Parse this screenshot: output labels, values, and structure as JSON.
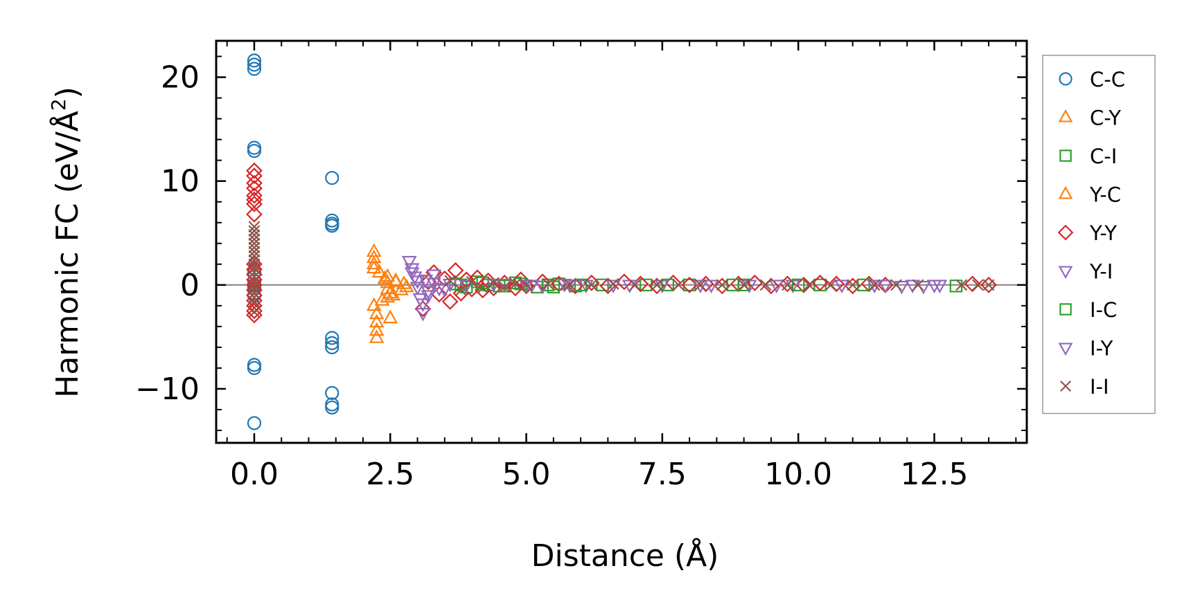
{
  "chart_data": {
    "type": "scatter",
    "title": "",
    "xlabel": "Distance (Å)",
    "ylabel_main": "Harmonic FC (eV/Å",
    "ylabel_sup": "2",
    "ylabel_close": ")",
    "xlim": [
      -0.7,
      14.2
    ],
    "ylim": [
      -15.2,
      23.5
    ],
    "xticks": [
      {
        "value": 0.0,
        "label": "0.0"
      },
      {
        "value": 2.5,
        "label": "2.5"
      },
      {
        "value": 5.0,
        "label": "5.0"
      },
      {
        "value": 7.5,
        "label": "7.5"
      },
      {
        "value": 10.0,
        "label": "10.0"
      },
      {
        "value": 12.5,
        "label": "12.5"
      }
    ],
    "yticks": [
      {
        "value": -10,
        "label": "−10"
      },
      {
        "value": 0,
        "label": "0"
      },
      {
        "value": 10,
        "label": "10"
      },
      {
        "value": 20,
        "label": "20"
      }
    ],
    "x_minor_step": 0.5,
    "y_minor_step": 2,
    "zero_line": true,
    "grid": false,
    "legend_position": "right-outside",
    "series": [
      {
        "name": "C-C",
        "marker": "circle",
        "color": "#1f77b4",
        "x": [
          0,
          0,
          0,
          0,
          0,
          0,
          0,
          0,
          0,
          0,
          0,
          0,
          0,
          1.43,
          1.43,
          1.43,
          1.43,
          1.43,
          1.43,
          1.43,
          1.43,
          1.43,
          1.43
        ],
        "y": [
          21.6,
          21.2,
          20.8,
          13.2,
          12.9,
          1.2,
          0.4,
          -0.3,
          -1.0,
          -7.7,
          -8.0,
          -13.3,
          0.0,
          10.3,
          6.2,
          5.9,
          5.7,
          -5.1,
          -5.6,
          -6.0,
          -10.4,
          -11.5,
          -11.8
        ]
      },
      {
        "name": "C-Y",
        "marker": "triangle-up",
        "color": "#ff7f0e",
        "x": [
          2.2,
          2.2,
          2.2,
          2.2,
          2.2,
          2.25,
          2.25,
          2.25,
          2.25,
          2.45,
          2.45,
          2.45,
          2.45,
          2.5,
          2.55,
          2.6
        ],
        "y": [
          3.2,
          2.6,
          2.0,
          1.6,
          -2.0,
          -2.8,
          -3.6,
          -4.4,
          -5.1,
          0.8,
          0.2,
          -0.4,
          -1.2,
          -3.2,
          -1.0,
          0.4
        ]
      },
      {
        "name": "C-I",
        "marker": "square",
        "color": "#2ca02c",
        "x": [
          3.7,
          3.9,
          4.1,
          4.3,
          4.6,
          4.8,
          5.2,
          5.4,
          5.6,
          5.9,
          6.4,
          7.2,
          8.0,
          9.0,
          10.4,
          12.9
        ],
        "y": [
          0.1,
          -0.2,
          0.3,
          0.0,
          -0.1,
          0.2,
          -0.2,
          0.0,
          0.1,
          -0.1,
          0.0,
          0.0,
          0.0,
          0.0,
          0.0,
          -0.1
        ]
      },
      {
        "name": "Y-C",
        "marker": "triangle-up",
        "color": "#ff7f0e",
        "x": [
          2.3,
          2.35,
          2.4,
          2.5,
          2.6,
          2.7,
          2.75,
          2.8
        ],
        "y": [
          1.2,
          -1.5,
          0.6,
          -0.8,
          0.3,
          -0.5,
          0.1,
          -0.2
        ]
      },
      {
        "name": "Y-Y",
        "marker": "diamond",
        "color": "#d62728",
        "x": [
          0,
          0,
          0,
          0,
          0,
          0,
          0,
          0,
          0,
          0,
          0,
          0,
          0,
          0,
          0,
          0,
          0,
          0,
          0,
          3.1,
          3.2,
          3.3,
          3.4,
          3.5,
          3.6,
          3.7,
          3.8,
          3.9,
          4.0,
          4.1,
          4.2,
          4.3,
          4.4,
          4.6,
          4.8,
          4.9,
          5.0,
          5.3,
          5.6,
          5.9,
          6.2,
          6.5,
          6.8,
          7.1,
          7.4,
          7.7,
          8.0,
          8.3,
          8.6,
          8.9,
          9.2,
          9.5,
          9.8,
          10.1,
          10.4,
          10.7,
          11.0,
          11.3,
          11.6,
          13.2,
          13.5
        ],
        "y": [
          11.0,
          10.5,
          9.8,
          9.3,
          8.6,
          8.2,
          7.8,
          6.8,
          2.0,
          1.5,
          1.0,
          0.5,
          0.0,
          -0.5,
          -1.0,
          -1.5,
          -2.0,
          -2.5,
          -2.9,
          -2.3,
          0.3,
          1.2,
          -0.9,
          0.6,
          -1.6,
          1.4,
          -0.8,
          0.5,
          -0.4,
          0.7,
          -0.5,
          0.4,
          -0.3,
          0.2,
          -0.3,
          0.5,
          -0.1,
          0.3,
          0.1,
          -0.1,
          0.2,
          -0.1,
          0.3,
          0.1,
          -0.1,
          0.2,
          0.0,
          0.1,
          -0.1,
          0.1,
          0.2,
          -0.1,
          0.1,
          0.0,
          0.2,
          0.1,
          -0.1,
          0.1,
          0.0,
          0.1,
          0.0
        ]
      },
      {
        "name": "Y-I",
        "marker": "triangle-down",
        "color": "#9467bd",
        "x": [
          2.85,
          2.9,
          2.95,
          3.0,
          3.05,
          3.1,
          3.15,
          3.2,
          3.3,
          3.5,
          4.6,
          5.0,
          5.3,
          5.7,
          6.1,
          6.6,
          7.5,
          8.2,
          9.1,
          9.9,
          10.8,
          11.6,
          11.9,
          12.1,
          12.3,
          12.5
        ],
        "y": [
          2.3,
          1.6,
          0.8,
          -0.2,
          -1.3,
          -2.7,
          0.5,
          -0.6,
          1.0,
          -0.4,
          0.1,
          0.0,
          -0.1,
          0.1,
          0.0,
          0.0,
          0.0,
          0.0,
          0.0,
          0.0,
          0.0,
          0.0,
          -0.1,
          0.0,
          -0.1,
          0.0
        ]
      },
      {
        "name": "I-C",
        "marker": "square",
        "color": "#2ca02c",
        "x": [
          3.8,
          4.2,
          4.5,
          4.9,
          5.5,
          6.0,
          7.6,
          8.8,
          10.0,
          11.2
        ],
        "y": [
          0.0,
          0.2,
          -0.1,
          0.1,
          -0.2,
          0.0,
          0.0,
          0.0,
          0.0,
          0.0
        ]
      },
      {
        "name": "I-Y",
        "marker": "triangle-down",
        "color": "#9467bd",
        "x": [
          2.9,
          3.0,
          3.1,
          3.2,
          3.3,
          3.4,
          3.6,
          3.9,
          4.4,
          5.1,
          5.8,
          6.9,
          8.4,
          9.6,
          11.4,
          12.6
        ],
        "y": [
          1.2,
          0.4,
          -1.8,
          -1.0,
          0.2,
          -0.3,
          0.1,
          0.0,
          0.1,
          0.0,
          0.0,
          0.0,
          0.0,
          0.0,
          0.0,
          0.0
        ]
      },
      {
        "name": "I-I",
        "marker": "x",
        "color": "#8c564b",
        "x": [
          0,
          0,
          0,
          0,
          0,
          0,
          0,
          0,
          0,
          0,
          0,
          0,
          0,
          0,
          0,
          0,
          0,
          0,
          0,
          0,
          3.6,
          3.8,
          4.0,
          4.2,
          4.4,
          4.6,
          4.8,
          5.0,
          5.4,
          5.8,
          6.2,
          6.6,
          7.0,
          7.4,
          7.8,
          8.2,
          8.6,
          9.0,
          9.4,
          9.8,
          10.2,
          10.6,
          11.0,
          11.4,
          11.8,
          12.2,
          13.0,
          13.3,
          13.5
        ],
        "y": [
          5.6,
          5.2,
          4.8,
          4.4,
          4.0,
          3.6,
          3.2,
          2.8,
          2.4,
          2.0,
          1.6,
          1.2,
          0.8,
          0.4,
          0.0,
          -0.4,
          -0.8,
          -1.2,
          -1.6,
          -2.6,
          0.4,
          -0.5,
          0.3,
          -0.3,
          0.2,
          -0.2,
          0.1,
          0.0,
          0.1,
          0.0,
          0.0,
          0.1,
          0.0,
          0.0,
          0.0,
          0.0,
          0.0,
          0.0,
          0.0,
          0.0,
          0.0,
          0.0,
          0.0,
          0.0,
          0.0,
          0.0,
          0.0,
          0.0,
          0.0
        ]
      }
    ]
  }
}
